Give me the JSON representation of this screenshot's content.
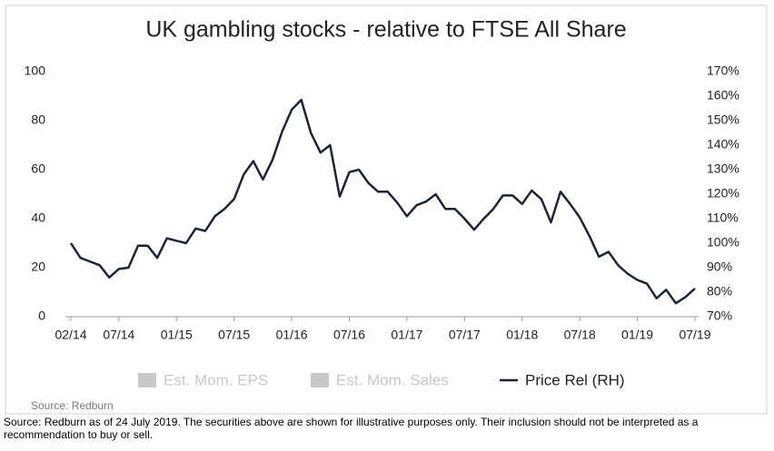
{
  "chart_data": {
    "type": "line",
    "title": "UK gambling stocks - relative to FTSE All Share",
    "source": "Source:  Redburn",
    "footnote": "Source: Redburn as of 24 July 2019. The securities above are shown for illustrative purposes only. Their inclusion should not be interpreted as a recommendation to buy or sell.",
    "categories": [
      "02/14",
      null,
      null,
      null,
      null,
      "07/14",
      null,
      null,
      null,
      null,
      null,
      "01/15",
      null,
      null,
      null,
      null,
      null,
      "07/15",
      null,
      null,
      null,
      null,
      null,
      "01/16",
      null,
      null,
      null,
      null,
      null,
      "07/16",
      null,
      null,
      null,
      null,
      null,
      "01/17",
      null,
      null,
      null,
      null,
      null,
      "07/17",
      null,
      null,
      null,
      null,
      null,
      "01/18",
      null,
      null,
      null,
      null,
      null,
      "07/18",
      null,
      null,
      null,
      null,
      null,
      "01/19",
      null,
      null,
      null,
      null,
      null,
      "07/19"
    ],
    "series": [
      {
        "name": "Est. Mom. EPS",
        "color": "#c8c8c8",
        "values": [
          null,
          null,
          null,
          null,
          null,
          null,
          null,
          null,
          null,
          null,
          null,
          null,
          null,
          null,
          null,
          null,
          null,
          null,
          null,
          null,
          null,
          null,
          null,
          null,
          null,
          null,
          null,
          null,
          null,
          null,
          null,
          null,
          null,
          null,
          null,
          null,
          null,
          null,
          null,
          null,
          null,
          null,
          null,
          null,
          null,
          null,
          null,
          null,
          null,
          null,
          null,
          null,
          null,
          null,
          null,
          null,
          null,
          null,
          null,
          null,
          null,
          null,
          null,
          null,
          null,
          null
        ]
      },
      {
        "name": "Est. Mom. Sales",
        "color": "#c8c8c8",
        "values": [
          null,
          null,
          null,
          null,
          null,
          null,
          null,
          null,
          null,
          null,
          null,
          null,
          null,
          null,
          null,
          null,
          null,
          null,
          null,
          null,
          null,
          null,
          null,
          null,
          null,
          null,
          null,
          null,
          null,
          null,
          null,
          null,
          null,
          null,
          null,
          null,
          null,
          null,
          null,
          null,
          null,
          null,
          null,
          null,
          null,
          null,
          null,
          null,
          null,
          null,
          null,
          null,
          null,
          null,
          null,
          null,
          null,
          null,
          null,
          null,
          null,
          null,
          null,
          null,
          null,
          null
        ]
      },
      {
        "name": "Price Rel (RH)",
        "color": "#1b2434",
        "axis": "y2",
        "values": [
          100,
          94,
          92.5,
          91,
          86,
          89.5,
          90,
          99,
          99,
          94,
          102,
          101,
          100,
          106,
          105,
          111,
          114,
          118,
          128,
          133.5,
          126,
          134,
          145.5,
          154.5,
          158.5,
          145,
          137,
          140,
          119,
          129,
          130,
          124.5,
          121,
          121,
          116.5,
          111,
          115.5,
          117,
          120,
          114,
          114,
          110,
          105.5,
          110,
          114,
          119.5,
          119.5,
          116,
          121.5,
          118,
          108.5,
          121,
          116,
          110.5,
          103,
          94.5,
          96.5,
          91,
          87.5,
          85,
          83.5,
          77.5,
          81,
          75.5,
          78,
          81.5
        ]
      }
    ],
    "ylim": [
      0,
      100
    ],
    "yticks": [
      0,
      20,
      40,
      60,
      80,
      100
    ],
    "y2lim": [
      70,
      170
    ],
    "y2ticks": [
      {
        "value": 70,
        "label": "70%"
      },
      {
        "value": 80,
        "label": "80%"
      },
      {
        "value": 90,
        "label": "90%"
      },
      {
        "value": 100,
        "label": "100%"
      },
      {
        "value": 110,
        "label": "110%"
      },
      {
        "value": 120,
        "label": "120%"
      },
      {
        "value": 130,
        "label": "130%"
      },
      {
        "value": 140,
        "label": "140%"
      },
      {
        "value": 150,
        "label": "150%"
      },
      {
        "value": 160,
        "label": "160%"
      },
      {
        "value": 170,
        "label": "170%"
      }
    ],
    "grid": false,
    "legend": "bottom"
  }
}
